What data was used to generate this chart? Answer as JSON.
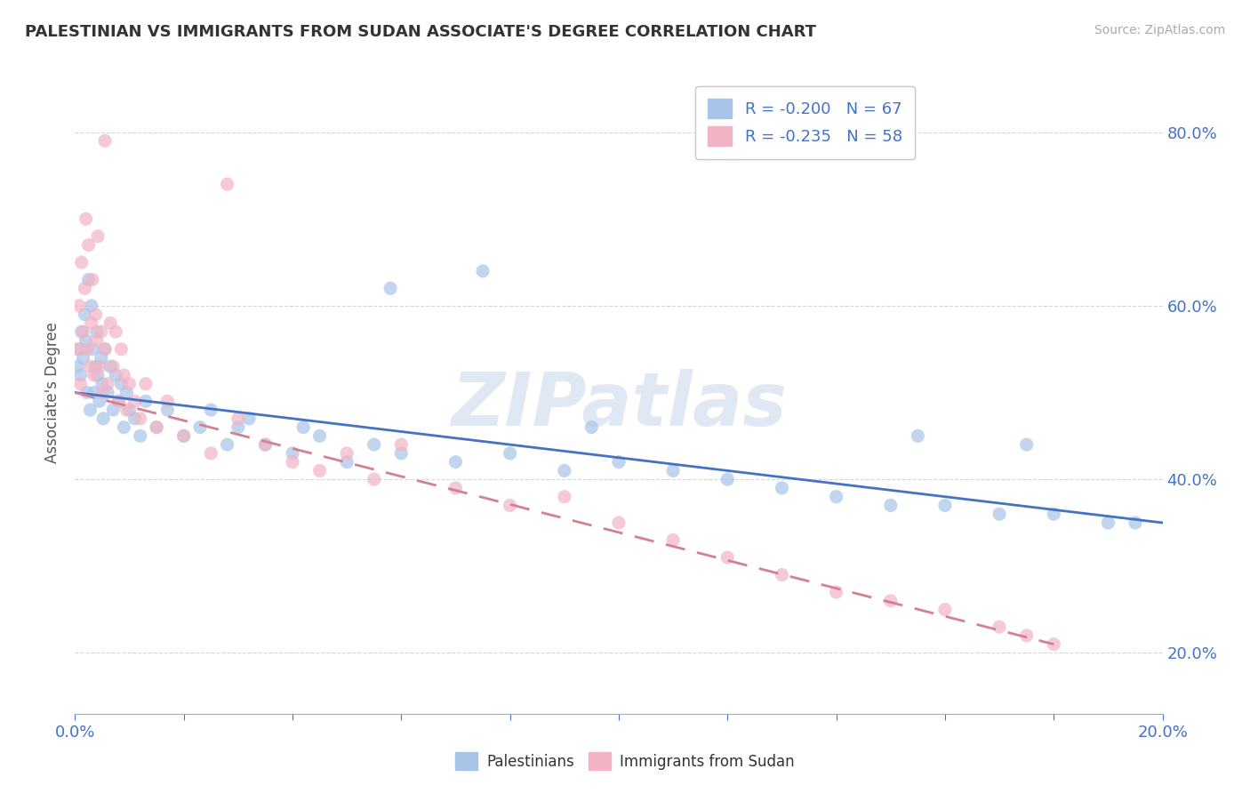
{
  "title": "PALESTINIAN VS IMMIGRANTS FROM SUDAN ASSOCIATE'S DEGREE CORRELATION CHART",
  "source": "Source: ZipAtlas.com",
  "ylabel": "Associate's Degree",
  "xlim": [
    0.0,
    20.0
  ],
  "ylim": [
    13.0,
    87.0
  ],
  "yticks": [
    20.0,
    40.0,
    60.0,
    80.0
  ],
  "xticks": [
    0.0,
    2.0,
    4.0,
    6.0,
    8.0,
    10.0,
    12.0,
    14.0,
    16.0,
    18.0,
    20.0
  ],
  "legend_blue_label": "R = -0.200   N = 67",
  "legend_pink_label": "R = -0.235   N = 58",
  "blue_color": "#a8c4e8",
  "pink_color": "#f2b3c4",
  "blue_line_color": "#4472c4",
  "pink_line_color": "#d48090",
  "blue_scatter_x": [
    0.05,
    0.08,
    0.1,
    0.12,
    0.15,
    0.18,
    0.2,
    0.22,
    0.25,
    0.28,
    0.3,
    0.32,
    0.35,
    0.38,
    0.4,
    0.42,
    0.45,
    0.48,
    0.5,
    0.52,
    0.55,
    0.6,
    0.65,
    0.7,
    0.75,
    0.8,
    0.85,
    0.9,
    0.95,
    1.0,
    1.1,
    1.2,
    1.3,
    1.5,
    1.7,
    2.0,
    2.3,
    2.5,
    2.8,
    3.0,
    3.5,
    4.0,
    4.5,
    5.0,
    5.5,
    6.0,
    7.0,
    8.0,
    9.0,
    10.0,
    11.0,
    12.0,
    13.0,
    14.0,
    15.0,
    16.0,
    17.0,
    18.0,
    19.0,
    19.5,
    3.2,
    4.2,
    5.8,
    7.5,
    9.5,
    15.5,
    17.5
  ],
  "blue_scatter_y": [
    53.0,
    55.0,
    52.0,
    57.0,
    54.0,
    59.0,
    56.0,
    50.0,
    63.0,
    48.0,
    60.0,
    55.0,
    50.0,
    53.0,
    57.0,
    52.0,
    49.0,
    54.0,
    51.0,
    47.0,
    55.0,
    50.0,
    53.0,
    48.0,
    52.0,
    49.0,
    51.0,
    46.0,
    50.0,
    48.0,
    47.0,
    45.0,
    49.0,
    46.0,
    48.0,
    45.0,
    46.0,
    48.0,
    44.0,
    46.0,
    44.0,
    43.0,
    45.0,
    42.0,
    44.0,
    43.0,
    42.0,
    43.0,
    41.0,
    42.0,
    41.0,
    40.0,
    39.0,
    38.0,
    37.0,
    37.0,
    36.0,
    36.0,
    35.0,
    35.0,
    47.0,
    46.0,
    62.0,
    64.0,
    46.0,
    45.0,
    44.0
  ],
  "pink_scatter_x": [
    0.05,
    0.08,
    0.1,
    0.12,
    0.15,
    0.18,
    0.2,
    0.22,
    0.25,
    0.28,
    0.3,
    0.32,
    0.35,
    0.38,
    0.4,
    0.42,
    0.45,
    0.48,
    0.5,
    0.55,
    0.6,
    0.65,
    0.7,
    0.75,
    0.8,
    0.85,
    0.9,
    0.95,
    1.0,
    1.1,
    1.2,
    1.3,
    1.5,
    1.7,
    2.0,
    2.5,
    3.0,
    3.5,
    4.0,
    4.5,
    5.0,
    5.5,
    6.0,
    7.0,
    8.0,
    9.0,
    10.0,
    11.0,
    12.0,
    13.0,
    14.0,
    15.0,
    16.0,
    17.0,
    17.5,
    18.0,
    0.55,
    2.8
  ],
  "pink_scatter_y": [
    55.0,
    60.0,
    51.0,
    65.0,
    57.0,
    62.0,
    70.0,
    55.0,
    67.0,
    53.0,
    58.0,
    63.0,
    52.0,
    59.0,
    56.0,
    68.0,
    53.0,
    57.0,
    50.0,
    55.0,
    51.0,
    58.0,
    53.0,
    57.0,
    49.0,
    55.0,
    52.0,
    48.0,
    51.0,
    49.0,
    47.0,
    51.0,
    46.0,
    49.0,
    45.0,
    43.0,
    47.0,
    44.0,
    42.0,
    41.0,
    43.0,
    40.0,
    44.0,
    39.0,
    37.0,
    38.0,
    35.0,
    33.0,
    31.0,
    29.0,
    27.0,
    26.0,
    25.0,
    23.0,
    22.0,
    21.0,
    79.0,
    74.0
  ],
  "blue_trend_x": [
    0.0,
    20.0
  ],
  "blue_trend_y": [
    50.0,
    35.0
  ],
  "pink_trend_x": [
    0.0,
    18.0
  ],
  "pink_trend_y": [
    50.0,
    21.0
  ],
  "background_color": "#ffffff",
  "grid_color": "#cccccc"
}
